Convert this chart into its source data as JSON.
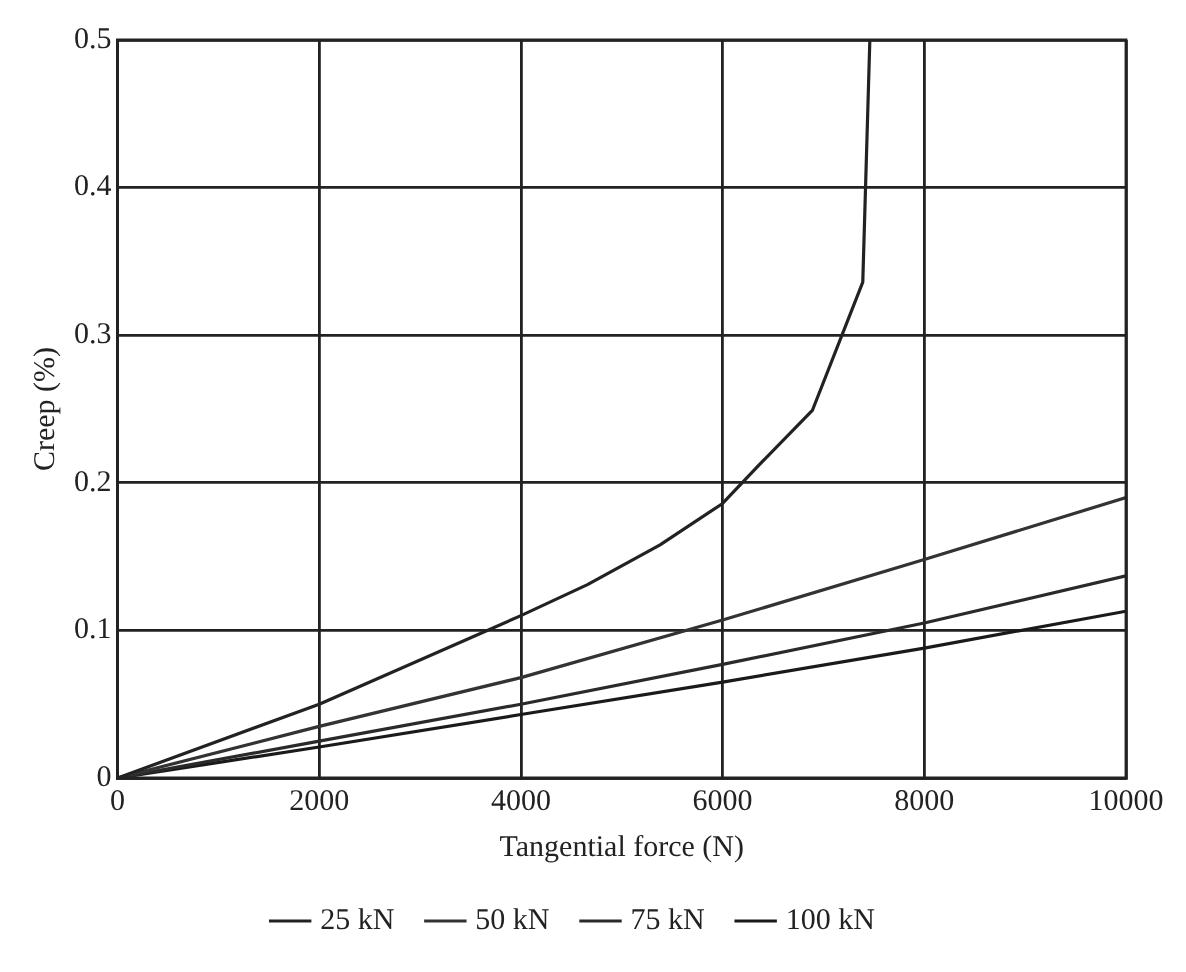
{
  "chart_data": {
    "type": "line",
    "xlabel": "Tangential force (N)",
    "ylabel": "Creep (%)",
    "xlim": [
      0,
      10000
    ],
    "xticks": [
      0,
      2000,
      4000,
      6000,
      8000,
      10000
    ],
    "ylim": [
      0,
      0.5
    ],
    "yticks": [
      0,
      0.1,
      0.2,
      0.3,
      0.4,
      0.5
    ],
    "grid": true,
    "legend": "bottom",
    "marker": "none",
    "line_style": "solid",
    "series": [
      {
        "name": "25 kN",
        "color": "#222222",
        "x": [
          0,
          2000,
          4000,
          4660,
          5380,
          6000,
          6360,
          6890,
          7390,
          7460
        ],
        "values": [
          0,
          0.05,
          0.11,
          0.131,
          0.158,
          0.186,
          0.212,
          0.249,
          0.336,
          0.5
        ]
      },
      {
        "name": "50 kN",
        "color": "#333333",
        "x": [
          0,
          2000,
          4000,
          6000,
          8000,
          10000
        ],
        "values": [
          0,
          0.035,
          0.068,
          0.107,
          0.148,
          0.19
        ]
      },
      {
        "name": "75 kN",
        "color": "#2a2a2a",
        "x": [
          0,
          2000,
          4000,
          6000,
          8000,
          10000
        ],
        "values": [
          0,
          0.025,
          0.05,
          0.077,
          0.105,
          0.137
        ]
      },
      {
        "name": "100 kN",
        "color": "#1a1a1a",
        "x": [
          0,
          2000,
          4000,
          6000,
          8000,
          10000
        ],
        "values": [
          0,
          0.021,
          0.043,
          0.065,
          0.088,
          0.113
        ]
      }
    ]
  }
}
